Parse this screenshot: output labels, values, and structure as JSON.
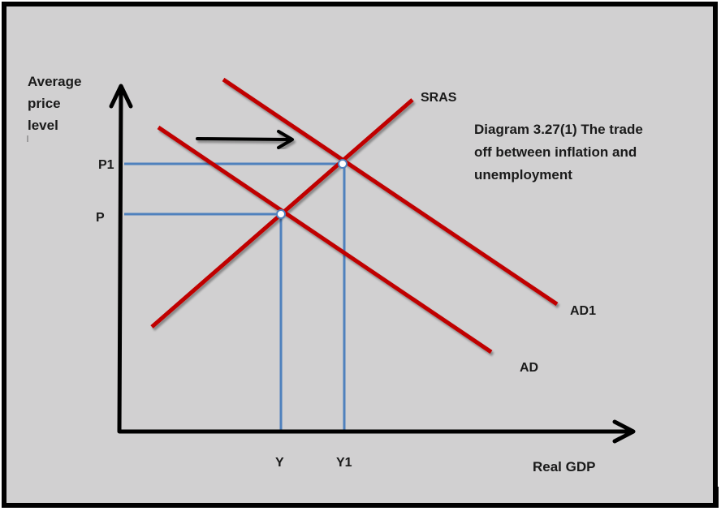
{
  "colors": {
    "background": "#d1d0d1",
    "frame": "#000000",
    "curve": "#c00000",
    "guide": "#4f81bd",
    "axis": "#000000"
  },
  "axes": {
    "y_title_lines": [
      "Average",
      "price",
      "level"
    ],
    "x_title": "Real GDP"
  },
  "ticks": {
    "price": [
      "P1",
      "P"
    ],
    "output": [
      "Y",
      "Y1"
    ]
  },
  "curves": {
    "sras": "SRAS",
    "ad": "AD",
    "ad1": "AD1"
  },
  "caption_lines": [
    "Diagram 3.27(1) The trade",
    "off between inflation and",
    "unemployment"
  ],
  "shift_arrow": "right"
}
